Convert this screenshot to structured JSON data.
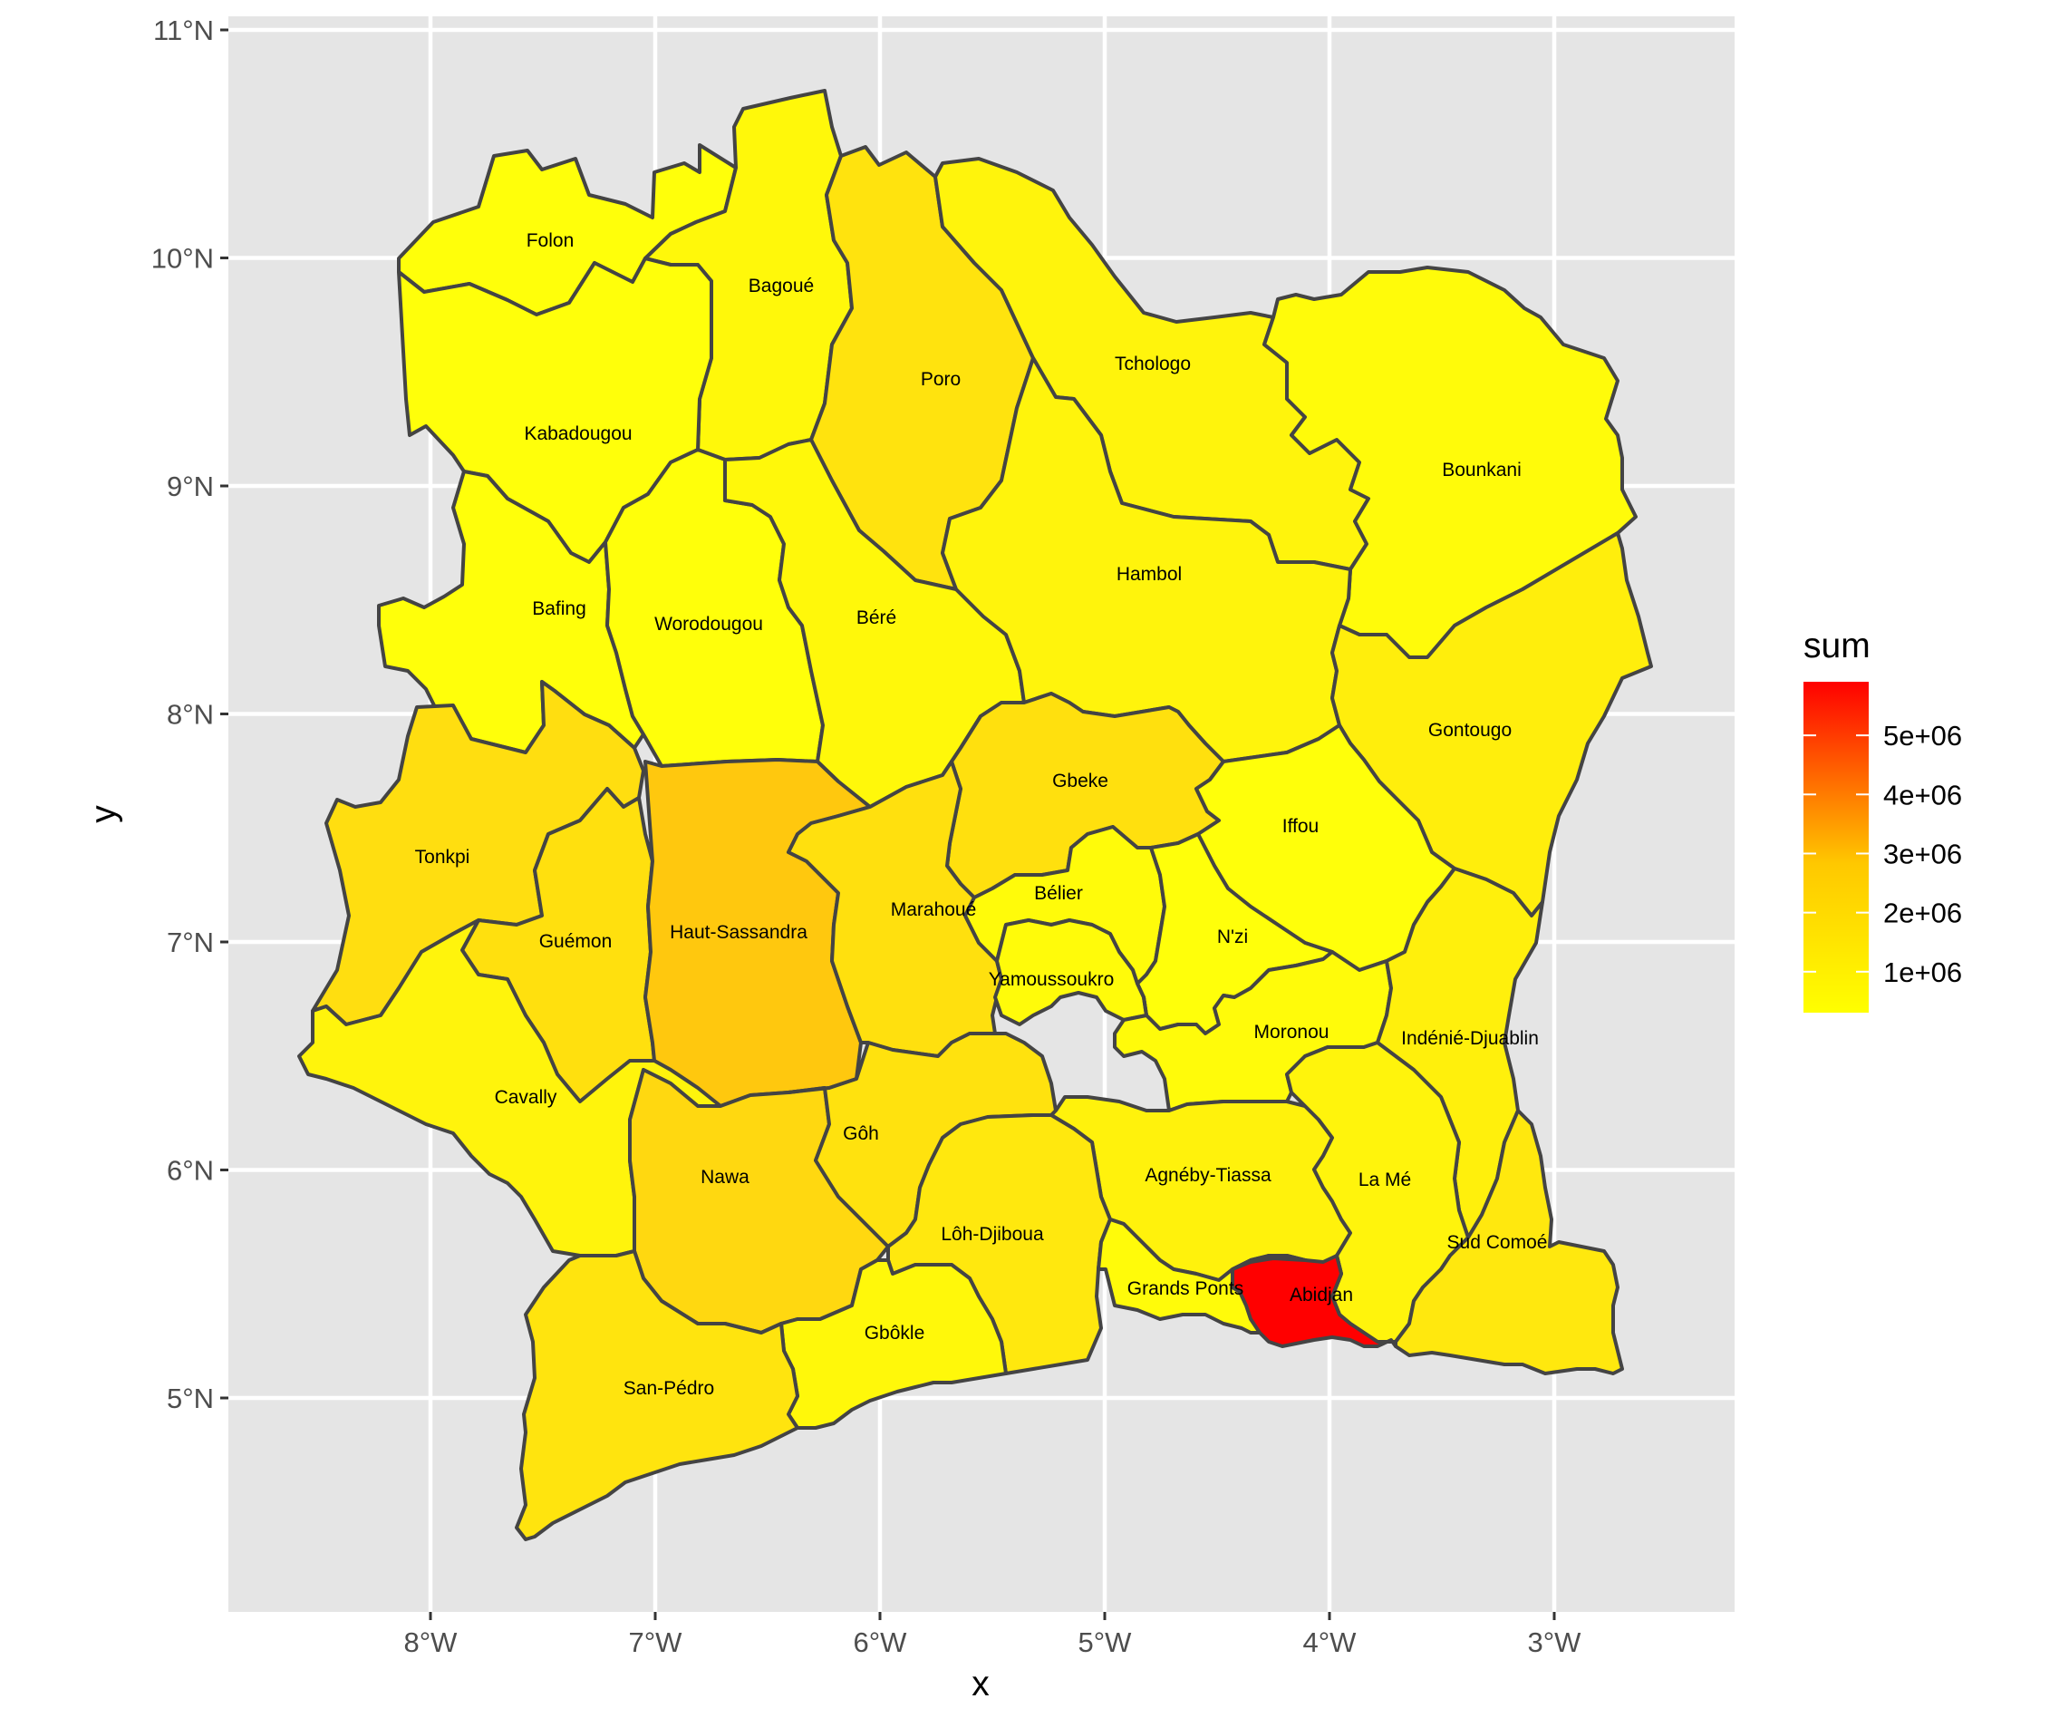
{
  "chart_data": {
    "type": "choropleth",
    "xlabel": "x",
    "ylabel": "y",
    "x_ticks": [
      "8°W",
      "7°W",
      "6°W",
      "5°W",
      "4°W",
      "3°W"
    ],
    "y_ticks": [
      "5°N",
      "6°N",
      "7°N",
      "8°N",
      "9°N",
      "10°N",
      "11°N"
    ],
    "legend": {
      "title": "sum",
      "labels": [
        "5e+06",
        "4e+06",
        "3e+06",
        "2e+06",
        "1e+06"
      ],
      "low_color": "#ffff00",
      "high_color": "#ff0000"
    },
    "grid": true,
    "legend_position": "right",
    "regions": [
      {
        "name": "Folon",
        "value": 100000,
        "color": "#ffff0a"
      },
      {
        "name": "Bagoué",
        "value": 400000,
        "color": "#fff80a"
      },
      {
        "name": "Poro",
        "value": 1000000,
        "color": "#ffe30e"
      },
      {
        "name": "Tchologo",
        "value": 470000,
        "color": "#fff40c"
      },
      {
        "name": "Bounkani",
        "value": 270000,
        "color": "#fffb0a"
      },
      {
        "name": "Kabadougou",
        "value": 200000,
        "color": "#ffff0a"
      },
      {
        "name": "Bafing",
        "value": 180000,
        "color": "#ffff0a"
      },
      {
        "name": "Worodougou",
        "value": 210000,
        "color": "#ffff0a"
      },
      {
        "name": "Béré",
        "value": 400000,
        "color": "#fff80a"
      },
      {
        "name": "Hambol",
        "value": 430000,
        "color": "#fff40c"
      },
      {
        "name": "Gontougo",
        "value": 670000,
        "color": "#ffee0c"
      },
      {
        "name": "Tonkpi",
        "value": 990000,
        "color": "#ffde10"
      },
      {
        "name": "Haut-Sassandra",
        "value": 1430000,
        "color": "#ffc80e"
      },
      {
        "name": "Gbeke",
        "value": 1010000,
        "color": "#ffe00e"
      },
      {
        "name": "Iffou",
        "value": 160000,
        "color": "#ffff0a"
      },
      {
        "name": "Guémon",
        "value": 920000,
        "color": "#ffe00e"
      },
      {
        "name": "Marahoué",
        "value": 860000,
        "color": "#ffe00e"
      },
      {
        "name": "Bélier",
        "value": 350000,
        "color": "#fffb0a"
      },
      {
        "name": "N'zi",
        "value": 240000,
        "color": "#ffff0a"
      },
      {
        "name": "Yamoussoukro",
        "value": 360000,
        "color": "#fffb0a"
      },
      {
        "name": "Moronou",
        "value": 350000,
        "color": "#fffb0a"
      },
      {
        "name": "Indénié-Djuablin",
        "value": 560000,
        "color": "#fff00c"
      },
      {
        "name": "Cavally",
        "value": 460000,
        "color": "#fff40c"
      },
      {
        "name": "Nawa",
        "value": 1060000,
        "color": "#ffd810"
      },
      {
        "name": "Gôh",
        "value": 880000,
        "color": "#ffe20e"
      },
      {
        "name": "Agnéby-Tiassa",
        "value": 600000,
        "color": "#fff20c"
      },
      {
        "name": "La Mé",
        "value": 510000,
        "color": "#fff40c"
      },
      {
        "name": "Lôh-Djiboua",
        "value": 730000,
        "color": "#ffe80e"
      },
      {
        "name": "Sud Comoé",
        "value": 680000,
        "color": "#ffe80e"
      },
      {
        "name": "Grands Ponts",
        "value": 360000,
        "color": "#fffb0a"
      },
      {
        "name": "Abidjan",
        "value": 5600000,
        "color": "#ff0000"
      },
      {
        "name": "Gbôkle",
        "value": 400000,
        "color": "#fff80a"
      },
      {
        "name": "San-Pédro",
        "value": 830000,
        "color": "#ffe40e"
      }
    ]
  }
}
